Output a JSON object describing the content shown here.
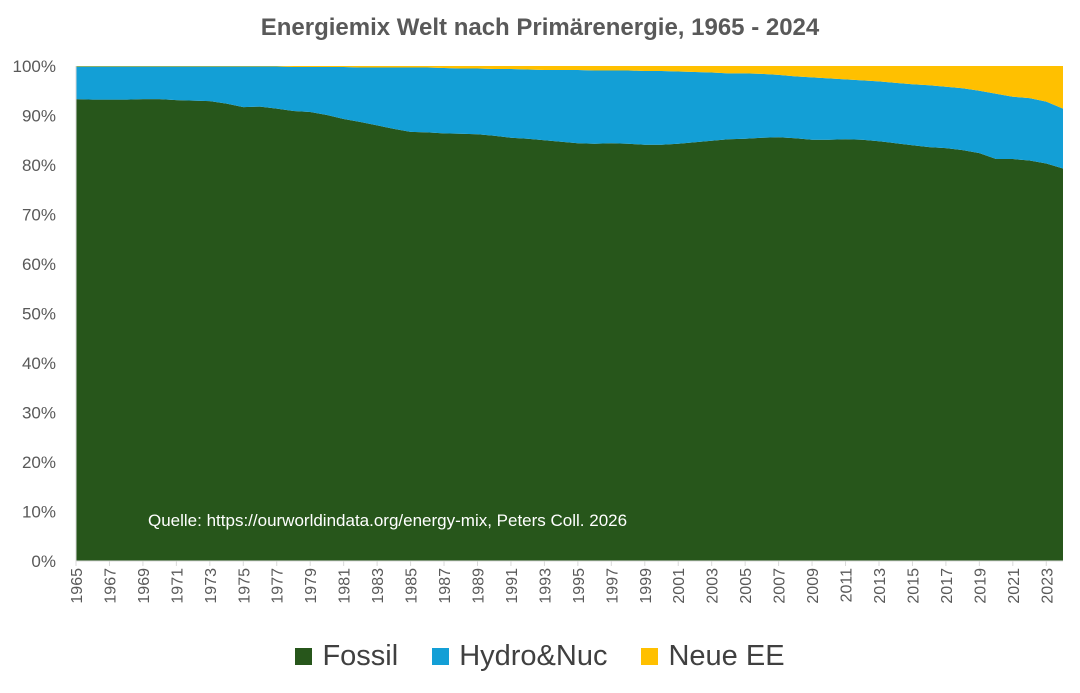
{
  "chart_data": {
    "type": "area",
    "stacked": true,
    "title": "Energiemix Welt nach Primärenergie, 1965 - 2024",
    "x": [
      1965,
      1966,
      1967,
      1968,
      1969,
      1970,
      1971,
      1972,
      1973,
      1974,
      1975,
      1976,
      1977,
      1978,
      1979,
      1980,
      1981,
      1982,
      1983,
      1984,
      1985,
      1986,
      1987,
      1988,
      1989,
      1990,
      1991,
      1992,
      1993,
      1994,
      1995,
      1996,
      1997,
      1998,
      1999,
      2000,
      2001,
      2002,
      2003,
      2004,
      2005,
      2006,
      2007,
      2008,
      2009,
      2010,
      2011,
      2012,
      2013,
      2014,
      2015,
      2016,
      2017,
      2018,
      2019,
      2020,
      2021,
      2022,
      2023,
      2024
    ],
    "x_tick_labels": [
      "1965",
      "1967",
      "1969",
      "1971",
      "1973",
      "1975",
      "1977",
      "1979",
      "1981",
      "1983",
      "1985",
      "1987",
      "1989",
      "1991",
      "1993",
      "1995",
      "1997",
      "1999",
      "2001",
      "2003",
      "2005",
      "2007",
      "2009",
      "2011",
      "2013",
      "2015",
      "2017",
      "2019",
      "2021",
      "2023"
    ],
    "y_tick_labels": [
      "0%",
      "10%",
      "20%",
      "30%",
      "40%",
      "50%",
      "60%",
      "70%",
      "80%",
      "90%",
      "100%"
    ],
    "ylim": [
      0,
      100
    ],
    "y_unit": "%",
    "series": [
      {
        "name": "Fossil",
        "color": "#27561b",
        "values": [
          93.3,
          93.2,
          93.2,
          93.2,
          93.3,
          93.3,
          93.1,
          93.0,
          92.9,
          92.4,
          91.7,
          91.8,
          91.4,
          90.9,
          90.7,
          90.1,
          89.3,
          88.7,
          88.0,
          87.3,
          86.7,
          86.6,
          86.4,
          86.3,
          86.2,
          85.9,
          85.5,
          85.3,
          85.0,
          84.7,
          84.4,
          84.3,
          84.4,
          84.3,
          84.1,
          84.1,
          84.3,
          84.6,
          84.9,
          85.2,
          85.3,
          85.5,
          85.6,
          85.4,
          85.1,
          85.1,
          85.2,
          85.1,
          84.8,
          84.4,
          84.0,
          83.6,
          83.4,
          83.0,
          82.4,
          81.2,
          81.2,
          80.9,
          80.3,
          79.3
        ]
      },
      {
        "name": "Hydro&Nuc",
        "color": "#139fd6",
        "values": [
          6.6,
          6.7,
          6.7,
          6.7,
          6.6,
          6.6,
          6.8,
          6.9,
          7.0,
          7.5,
          8.2,
          8.1,
          8.5,
          8.9,
          9.1,
          9.7,
          10.5,
          11.0,
          11.7,
          12.4,
          13.0,
          13.1,
          13.2,
          13.2,
          13.3,
          13.5,
          13.9,
          14.0,
          14.2,
          14.5,
          14.8,
          14.8,
          14.7,
          14.8,
          14.9,
          14.9,
          14.6,
          14.2,
          13.8,
          13.3,
          13.2,
          12.9,
          12.6,
          12.5,
          12.6,
          12.4,
          12.1,
          12.0,
          12.1,
          12.2,
          12.3,
          12.5,
          12.4,
          12.5,
          12.6,
          13.2,
          12.6,
          12.6,
          12.5,
          12.1
        ]
      },
      {
        "name": "Neue EE",
        "color": "#ffc000",
        "values": [
          0.1,
          0.1,
          0.1,
          0.1,
          0.1,
          0.1,
          0.1,
          0.1,
          0.1,
          0.1,
          0.1,
          0.1,
          0.1,
          0.2,
          0.2,
          0.2,
          0.2,
          0.3,
          0.3,
          0.3,
          0.3,
          0.3,
          0.4,
          0.5,
          0.5,
          0.6,
          0.6,
          0.7,
          0.8,
          0.8,
          0.8,
          0.9,
          0.9,
          0.9,
          1.0,
          1.0,
          1.1,
          1.2,
          1.3,
          1.5,
          1.5,
          1.6,
          1.8,
          2.1,
          2.3,
          2.5,
          2.7,
          2.9,
          3.1,
          3.4,
          3.7,
          3.9,
          4.2,
          4.5,
          5.0,
          5.6,
          6.2,
          6.5,
          7.2,
          8.6
        ]
      }
    ],
    "annotation": "Quelle: https://ourworldindata.org/energy-mix, Peters Coll. 2026",
    "legend_position": "bottom",
    "grid": false
  }
}
